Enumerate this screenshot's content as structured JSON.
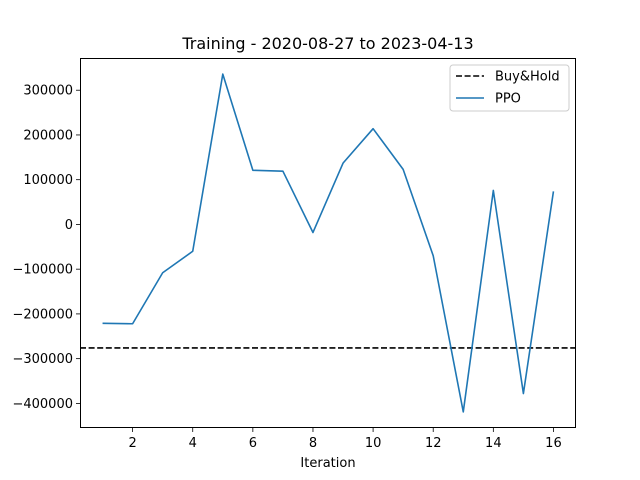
{
  "chart_data": {
    "type": "line",
    "title": "Training - 2020-08-27 to 2023-04-13",
    "xlabel": "Iteration",
    "ylabel": "",
    "xlim": [
      0.25,
      16.75
    ],
    "ylim": [
      -455000,
      372000
    ],
    "xticks": [
      2,
      4,
      6,
      8,
      10,
      12,
      14,
      16
    ],
    "yticks": [
      -400000,
      -300000,
      -200000,
      -100000,
      0,
      100000,
      200000,
      300000
    ],
    "ytick_labels": [
      "−400000",
      "−300000",
      "−200000",
      "−100000",
      "0",
      "100000",
      "200000",
      "300000"
    ],
    "grid": false,
    "legend_position": "top-right",
    "hlines": [
      {
        "name": "Buy&Hold",
        "y": -276000,
        "color": "#000000",
        "style": "dashed"
      }
    ],
    "series": [
      {
        "name": "PPO",
        "color": "#1f77b4",
        "x": [
          1,
          2,
          3,
          4,
          5,
          6,
          7,
          8,
          9,
          10,
          11,
          12,
          13,
          14,
          15,
          16
        ],
        "y": [
          -221000,
          -222000,
          -108000,
          -60000,
          336000,
          121000,
          119000,
          -18000,
          137000,
          214000,
          123000,
          -70000,
          -419000,
          76000,
          -378000,
          74000
        ]
      }
    ]
  }
}
